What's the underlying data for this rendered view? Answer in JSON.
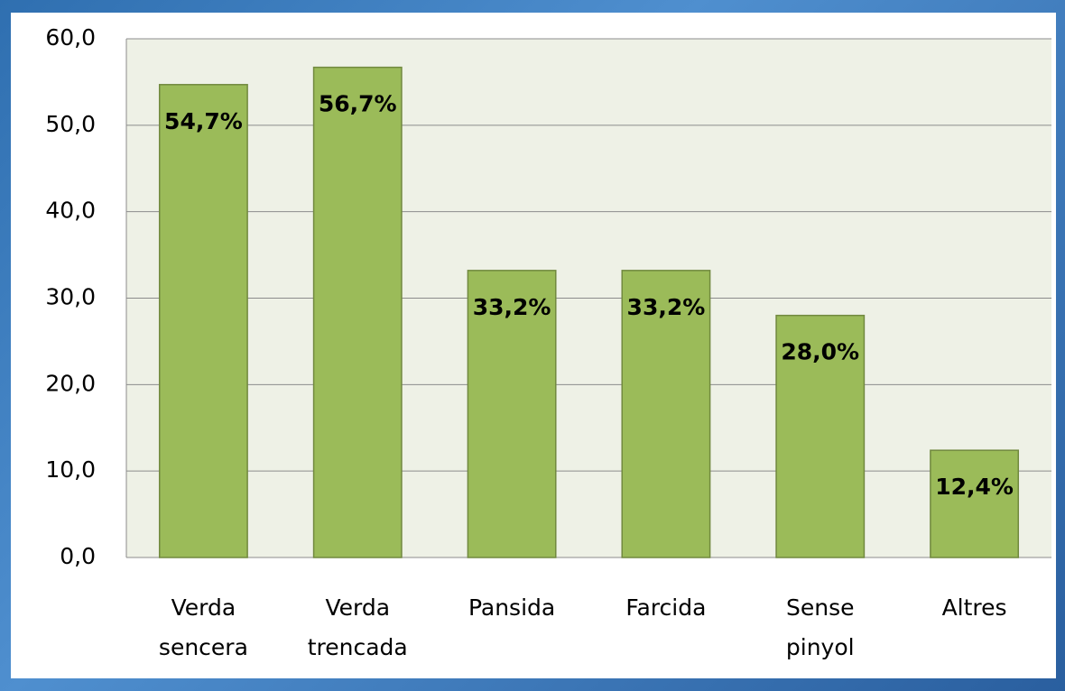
{
  "chart_data": {
    "type": "bar",
    "categories": [
      [
        "Verda",
        "sencera"
      ],
      [
        "Verda",
        "trencada"
      ],
      [
        "Pansida"
      ],
      [
        "Farcida"
      ],
      [
        "Sense",
        "pinyol"
      ],
      [
        "Altres"
      ]
    ],
    "values": [
      54.7,
      56.7,
      33.2,
      33.2,
      28.0,
      12.4
    ],
    "value_labels": [
      "54,7%",
      "56,7%",
      "33,2%",
      "33,2%",
      "28,0%",
      "12,4%"
    ],
    "color": "#9bbb59",
    "ylim": [
      0,
      60
    ],
    "yticks": [
      {
        "value": 0,
        "label": "0,0"
      },
      {
        "value": 10,
        "label": "10,0"
      },
      {
        "value": 20,
        "label": "20,0"
      },
      {
        "value": 30,
        "label": "30,0"
      },
      {
        "value": 40,
        "label": "40,0"
      },
      {
        "value": 50,
        "label": "50,0"
      },
      {
        "value": 60,
        "label": "60,0"
      }
    ],
    "grid": true
  }
}
